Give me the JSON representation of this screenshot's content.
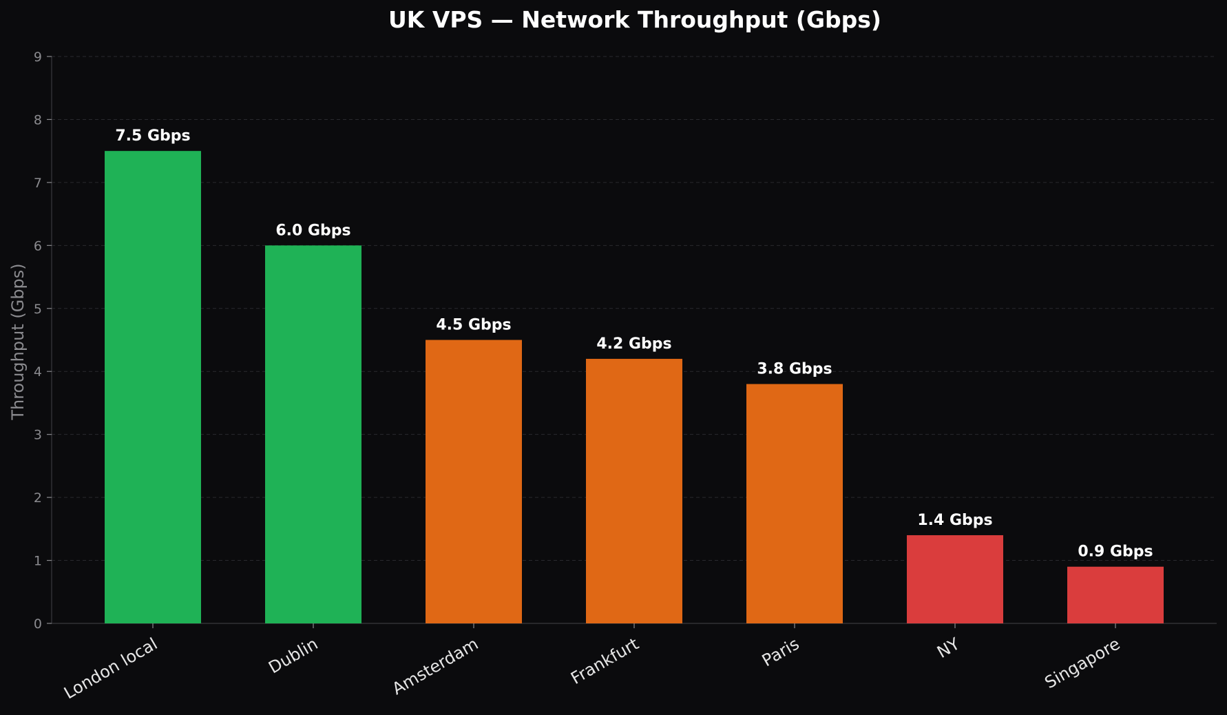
{
  "chart_data": {
    "type": "bar",
    "title": "UK VPS — Network Throughput (Gbps)",
    "xlabel": "",
    "ylabel": "Throughput (Gbps)",
    "ylim": [
      0,
      9
    ],
    "yticks": [
      "0",
      "1",
      "2",
      "3",
      "4",
      "5",
      "6",
      "7",
      "8",
      "9"
    ],
    "grid": true,
    "categories": [
      "London local",
      "Dublin",
      "Amsterdam",
      "Frankfurt",
      "Paris",
      "NY",
      "Singapore"
    ],
    "values": [
      7.5,
      6.0,
      4.5,
      4.2,
      3.8,
      1.4,
      0.9
    ],
    "value_labels": [
      "7.5 Gbps",
      "6.0 Gbps",
      "4.5 Gbps",
      "4.2 Gbps",
      "3.8 Gbps",
      "1.4 Gbps",
      "0.9 Gbps"
    ],
    "colors": [
      "#1fb256",
      "#1fb256",
      "#e06815",
      "#e06815",
      "#e06815",
      "#da3d3d",
      "#da3d3d"
    ]
  },
  "theme": {
    "background": "#0b0b0d",
    "grid_color": "#2a2a2e",
    "axis_color": "#3a3a3e"
  }
}
